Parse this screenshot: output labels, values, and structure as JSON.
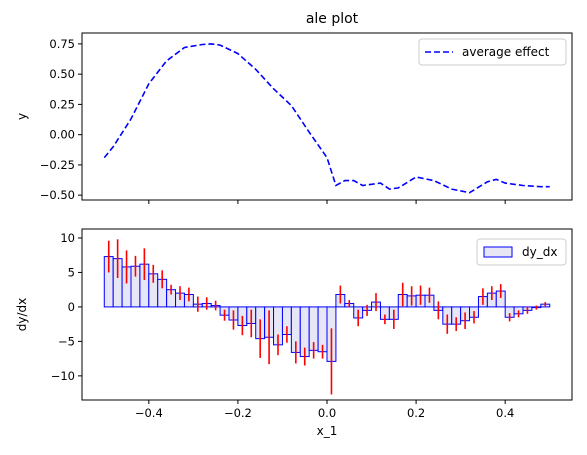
{
  "chart_data": [
    {
      "type": "line",
      "title": "ale plot",
      "xlabel": "",
      "ylabel": "y",
      "xlim": [
        -0.55,
        0.55
      ],
      "ylim": [
        -0.54,
        0.84
      ],
      "xticks": [
        -0.4,
        -0.2,
        0.0,
        0.2,
        0.4
      ],
      "yticks": [
        0.75,
        0.5,
        0.25,
        0.0,
        -0.25,
        -0.5
      ],
      "ytick_labels": [
        "0.75",
        "0.50",
        "0.25",
        "0.00",
        "−0.25",
        "−0.50"
      ],
      "xticklabels_visible": false,
      "legend": {
        "position": "top-right"
      },
      "series": [
        {
          "name": "average effect",
          "style": "dashed",
          "color": "#0000ff",
          "x": [
            -0.5,
            -0.48,
            -0.44,
            -0.4,
            -0.36,
            -0.32,
            -0.28,
            -0.26,
            -0.24,
            -0.2,
            -0.16,
            -0.12,
            -0.08,
            -0.04,
            0.0,
            0.02,
            0.04,
            0.06,
            0.08,
            0.1,
            0.12,
            0.14,
            0.16,
            0.2,
            0.24,
            0.28,
            0.32,
            0.36,
            0.38,
            0.4,
            0.44,
            0.48,
            0.5
          ],
          "y": [
            -0.19,
            -0.1,
            0.13,
            0.42,
            0.61,
            0.72,
            0.745,
            0.75,
            0.74,
            0.67,
            0.54,
            0.38,
            0.24,
            0.02,
            -0.19,
            -0.42,
            -0.38,
            -0.38,
            -0.42,
            -0.41,
            -0.4,
            -0.45,
            -0.44,
            -0.35,
            -0.38,
            -0.45,
            -0.48,
            -0.39,
            -0.37,
            -0.4,
            -0.42,
            -0.43,
            -0.43
          ]
        }
      ]
    },
    {
      "type": "bar",
      "title": "",
      "xlabel": "x_1",
      "ylabel": "dy/dx",
      "xlim": [
        -0.55,
        0.55
      ],
      "ylim": [
        -13.5,
        11.3
      ],
      "xticks": [
        -0.4,
        -0.2,
        0.0,
        0.2,
        0.4
      ],
      "xtick_labels": [
        "−0.4",
        "−0.2",
        "0.0",
        "0.2",
        "0.4"
      ],
      "yticks": [
        10,
        5,
        0,
        -5,
        -10
      ],
      "ytick_labels": [
        "10",
        "5",
        "0",
        "−5",
        "−10"
      ],
      "legend": {
        "position": "top-right"
      },
      "bar_fill": "#e6e6f5",
      "bar_edge": "#0000ff",
      "error_color": "#ff0000",
      "series": [
        {
          "name": "dy_dx",
          "bin_width": 0.02,
          "bin_starts": [
            -0.5,
            -0.48,
            -0.46,
            -0.44,
            -0.42,
            -0.4,
            -0.38,
            -0.36,
            -0.34,
            -0.32,
            -0.3,
            -0.28,
            -0.26,
            -0.24,
            -0.22,
            -0.2,
            -0.18,
            -0.16,
            -0.14,
            -0.12,
            -0.1,
            -0.08,
            -0.06,
            -0.04,
            -0.02,
            0.0,
            0.02,
            0.04,
            0.06,
            0.08,
            0.1,
            0.12,
            0.14,
            0.16,
            0.18,
            0.2,
            0.22,
            0.24,
            0.26,
            0.28,
            0.3,
            0.32,
            0.34,
            0.36,
            0.38,
            0.4,
            0.42,
            0.44,
            0.46,
            0.48
          ],
          "values": [
            7.3,
            7.0,
            5.8,
            5.9,
            6.2,
            4.8,
            4.0,
            2.5,
            2.0,
            1.8,
            0.4,
            0.5,
            0.2,
            -1.2,
            -1.9,
            -2.7,
            -2.4,
            -4.6,
            -4.4,
            -5.5,
            -4.0,
            -6.6,
            -7.2,
            -6.3,
            -6.5,
            -7.9,
            1.8,
            0.5,
            -1.6,
            -0.5,
            0.7,
            -1.8,
            -1.8,
            1.8,
            1.6,
            1.7,
            1.7,
            -0.5,
            -2.5,
            -2.5,
            -2.0,
            -1.5,
            1.5,
            2.0,
            2.3,
            -1.5,
            -1.0,
            -0.5,
            -0.1,
            0.4
          ],
          "errors": [
            2.3,
            2.8,
            2.4,
            1.5,
            2.3,
            1.3,
            1.3,
            0.7,
            1.0,
            1.0,
            1.1,
            0.9,
            0.7,
            0.8,
            1.4,
            1.4,
            2.0,
            2.8,
            3.9,
            1.5,
            1.2,
            1.6,
            1.3,
            1.2,
            1.0,
            4.8,
            1.3,
            0.5,
            1.2,
            0.8,
            1.3,
            0.7,
            1.4,
            1.7,
            1.4,
            1.4,
            1.1,
            1.3,
            1.4,
            1.0,
            1.2,
            0.9,
            1.2,
            1.0,
            1.0,
            0.6,
            0.5,
            0.5,
            0.3,
            0.3
          ]
        }
      ]
    }
  ]
}
